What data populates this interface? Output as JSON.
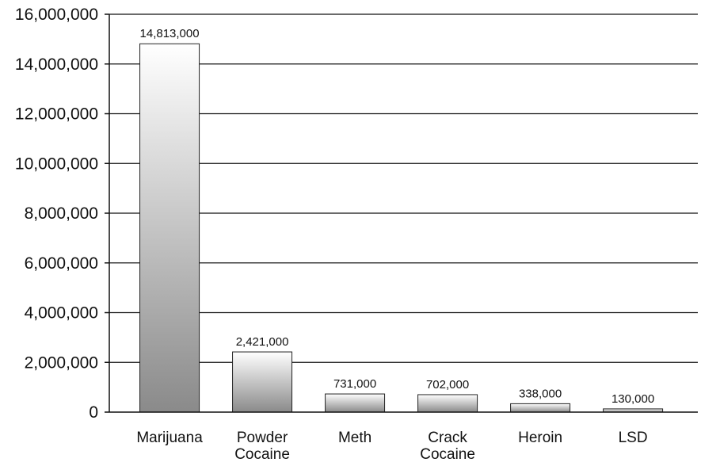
{
  "chart_data": {
    "type": "bar",
    "title": "",
    "xlabel": "",
    "ylabel": "",
    "categories": [
      [
        "Marijuana"
      ],
      [
        "Powder",
        "Cocaine"
      ],
      [
        "Meth"
      ],
      [
        "Crack",
        "Cocaine"
      ],
      [
        "Heroin"
      ],
      [
        "LSD"
      ]
    ],
    "values": [
      14813000,
      2421000,
      731000,
      702000,
      338000,
      130000
    ],
    "data_labels": [
      "14,813,000",
      "2,421,000",
      "731,000",
      "702,000",
      "338,000",
      "130,000"
    ],
    "ylim": [
      0,
      16000000
    ],
    "yticks": [
      0,
      2000000,
      4000000,
      6000000,
      8000000,
      10000000,
      12000000,
      14000000,
      16000000
    ],
    "ytick_labels": [
      "0",
      "2,000,000",
      "4,000,000",
      "6,000,000",
      "8,000,000",
      "10,000,000",
      "12,000,000",
      "14,000,000",
      "16,000,000"
    ],
    "grid": true,
    "legend": "none",
    "bar_gradient": [
      "#ffffff",
      "#8a8a8a"
    ]
  }
}
